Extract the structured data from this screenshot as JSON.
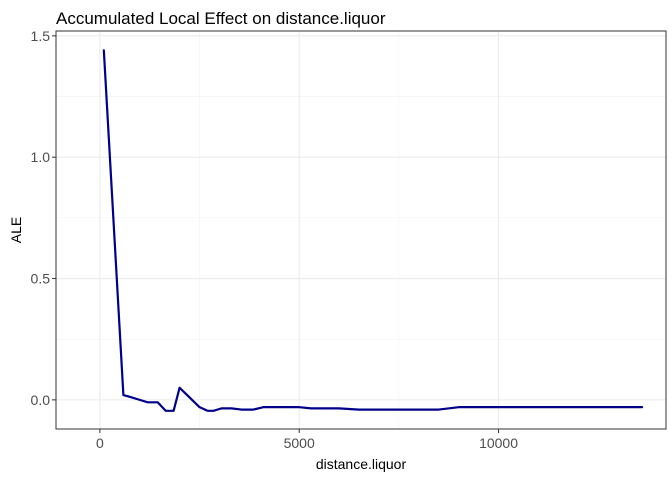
{
  "chart_data": {
    "type": "line",
    "title": "Accumulated Local Effect on distance.liquor",
    "xlabel": "distance.liquor",
    "ylabel": "ALE",
    "xlim": [
      -1100,
      14200
    ],
    "ylim": [
      -0.12,
      1.52
    ],
    "x_ticks": [
      0,
      5000,
      10000
    ],
    "x_tick_labels": [
      "0",
      "5000",
      "10000"
    ],
    "y_ticks": [
      0.0,
      0.5,
      1.0,
      1.5
    ],
    "y_tick_labels": [
      "0.0",
      "0.5",
      "1.0",
      "1.5"
    ],
    "grid": true,
    "line_color": "#00008B",
    "series": [
      {
        "x": [
          100,
          590,
          800,
          1000,
          1200,
          1450,
          1650,
          1850,
          2000,
          2250,
          2500,
          2700,
          2850,
          3050,
          3300,
          3550,
          3850,
          4100,
          4350,
          4700,
          5000,
          5300,
          5600,
          6000,
          6500,
          7000,
          7500,
          8000,
          8500,
          9000,
          9500,
          10000,
          11000,
          12000,
          13000,
          13600
        ],
        "y": [
          1.44,
          0.02,
          0.01,
          0.0,
          -0.01,
          -0.01,
          -0.045,
          -0.045,
          0.05,
          0.01,
          -0.03,
          -0.045,
          -0.045,
          -0.035,
          -0.035,
          -0.04,
          -0.04,
          -0.03,
          -0.03,
          -0.03,
          -0.03,
          -0.035,
          -0.035,
          -0.035,
          -0.04,
          -0.04,
          -0.04,
          -0.04,
          -0.04,
          -0.03,
          -0.03,
          -0.03,
          -0.03,
          -0.03,
          -0.03,
          -0.03
        ]
      }
    ]
  }
}
